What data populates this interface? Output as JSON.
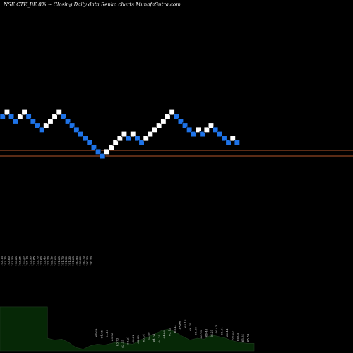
{
  "header": {
    "title": "NSE CTE_BE 8% ~ Closing Daily data  Renko  charts MunafaSutra.com"
  },
  "colors": {
    "background": "#000000",
    "up_brick": "#ffffff",
    "down_brick": "#1e73e8",
    "brick_border": "#000000",
    "reference_line": "#b5562a",
    "volume_fill": "#062806",
    "volume_edge": "#1f3a1f",
    "label_color": "#d8d8d8"
  },
  "chart_data": [
    {
      "type": "renko",
      "title": "NSE CTE_BE 8% ~ Closing Daily data  Renko  charts MunafaSutra.com",
      "grid": false,
      "reference_lines": [
        {
          "level": 17.35
        },
        {
          "level": 16.07
        }
      ],
      "bricks": [
        {
          "level": 17,
          "direction": "down"
        },
        {
          "level": 18,
          "direction": "up"
        },
        {
          "level": 17,
          "direction": "down"
        },
        {
          "level": 16,
          "direction": "down"
        },
        {
          "level": 17,
          "direction": "up"
        },
        {
          "level": 18,
          "direction": "up"
        },
        {
          "level": 17,
          "direction": "down"
        },
        {
          "level": 16,
          "direction": "down"
        },
        {
          "level": 15,
          "direction": "down"
        },
        {
          "level": 14,
          "direction": "down"
        },
        {
          "level": 15,
          "direction": "up"
        },
        {
          "level": 16,
          "direction": "up"
        },
        {
          "level": 17,
          "direction": "up"
        },
        {
          "level": 18,
          "direction": "up"
        },
        {
          "level": 17,
          "direction": "down"
        },
        {
          "level": 16,
          "direction": "down"
        },
        {
          "level": 15,
          "direction": "down"
        },
        {
          "level": 14,
          "direction": "down"
        },
        {
          "level": 13,
          "direction": "down"
        },
        {
          "level": 12,
          "direction": "down"
        },
        {
          "level": 11,
          "direction": "down"
        },
        {
          "level": 10,
          "direction": "down"
        },
        {
          "level": 9,
          "direction": "down"
        },
        {
          "level": 8,
          "direction": "down"
        },
        {
          "level": 9,
          "direction": "up"
        },
        {
          "level": 10,
          "direction": "up"
        },
        {
          "level": 11,
          "direction": "up"
        },
        {
          "level": 12,
          "direction": "up"
        },
        {
          "level": 13,
          "direction": "up"
        },
        {
          "level": 12,
          "direction": "down"
        },
        {
          "level": 13,
          "direction": "up"
        },
        {
          "level": 12,
          "direction": "down"
        },
        {
          "level": 11,
          "direction": "down"
        },
        {
          "level": 12,
          "direction": "up"
        },
        {
          "level": 13,
          "direction": "up"
        },
        {
          "level": 14,
          "direction": "up"
        },
        {
          "level": 15,
          "direction": "up"
        },
        {
          "level": 16,
          "direction": "up"
        },
        {
          "level": 17,
          "direction": "up"
        },
        {
          "level": 18,
          "direction": "up"
        },
        {
          "level": 17,
          "direction": "down"
        },
        {
          "level": 16,
          "direction": "down"
        },
        {
          "level": 15,
          "direction": "down"
        },
        {
          "level": 14,
          "direction": "down"
        },
        {
          "level": 13,
          "direction": "down"
        },
        {
          "level": 14,
          "direction": "up"
        },
        {
          "level": 13,
          "direction": "down"
        },
        {
          "level": 14,
          "direction": "up"
        },
        {
          "level": 15,
          "direction": "up"
        },
        {
          "level": 14,
          "direction": "down"
        },
        {
          "level": 13,
          "direction": "down"
        },
        {
          "level": 12,
          "direction": "down"
        },
        {
          "level": 11,
          "direction": "down"
        },
        {
          "level": 12,
          "direction": "up"
        },
        {
          "level": 11,
          "direction": "down"
        }
      ],
      "column_labels": [
        "193.15",
        "193.15",
        "193.60",
        "193.50",
        "193.25",
        "193.25",
        "193.20",
        "193.10",
        "192.90",
        "192.85",
        "192.70",
        "192.60",
        "192.40",
        "192.20",
        "192.10",
        "192.00",
        "191.85",
        "191.70",
        "191.50",
        "191.30",
        "191.05",
        "190.95",
        "190.80",
        "190.70",
        "190.50",
        "190.20",
        "64.69",
        "64.45",
        "64.14",
        "63.96",
        "63.73",
        "63.55",
        "63.21",
        "63.02",
        "63.38",
        "63.51",
        "63.69",
        "64.04",
        "64.39",
        "64.86",
        "65.12",
        "65.47",
        "65.88",
        "66.16",
        "66.39",
        "66.58",
        "66.73",
        "66.45",
        "66.25",
        "66.43",
        "66.61",
        "66.44",
        "66.28",
        "66.05",
        "65.81",
        "65.59"
      ],
      "volume": [
        {
          "x": 0,
          "v": 0.52
        },
        {
          "x": 0.5,
          "v": 0.52
        },
        {
          "x": 1,
          "v": 0.52
        },
        {
          "x": 1,
          "v": 0.15
        },
        {
          "x": 1.15,
          "v": 0.13
        },
        {
          "x": 1.3,
          "v": 0.14
        },
        {
          "x": 1.45,
          "v": 0.1
        },
        {
          "x": 1.6,
          "v": 0.04
        },
        {
          "x": 1.75,
          "v": 0.02
        },
        {
          "x": 1.9,
          "v": 0.06
        },
        {
          "x": 2.05,
          "v": 0.08
        },
        {
          "x": 2.2,
          "v": 0.07
        },
        {
          "x": 2.35,
          "v": 0.09
        },
        {
          "x": 2.5,
          "v": 0.11
        },
        {
          "x": 2.65,
          "v": 0.09
        },
        {
          "x": 2.8,
          "v": 0.08
        },
        {
          "x": 2.95,
          "v": 0.13
        },
        {
          "x": 3.1,
          "v": 0.16
        },
        {
          "x": 3.25,
          "v": 0.2
        },
        {
          "x": 3.4,
          "v": 0.24
        },
        {
          "x": 3.55,
          "v": 0.26
        },
        {
          "x": 3.7,
          "v": 0.22
        },
        {
          "x": 3.85,
          "v": 0.17
        },
        {
          "x": 4.0,
          "v": 0.13
        },
        {
          "x": 4.15,
          "v": 0.15
        },
        {
          "x": 4.3,
          "v": 0.14
        },
        {
          "x": 4.45,
          "v": 0.19
        },
        {
          "x": 4.6,
          "v": 0.17
        },
        {
          "x": 4.75,
          "v": 0.15
        },
        {
          "x": 4.9,
          "v": 0.12
        },
        {
          "x": 5.05,
          "v": 0.1
        },
        {
          "x": 5.2,
          "v": 0.09
        },
        {
          "x": 5.35,
          "v": 0.09
        }
      ]
    }
  ]
}
